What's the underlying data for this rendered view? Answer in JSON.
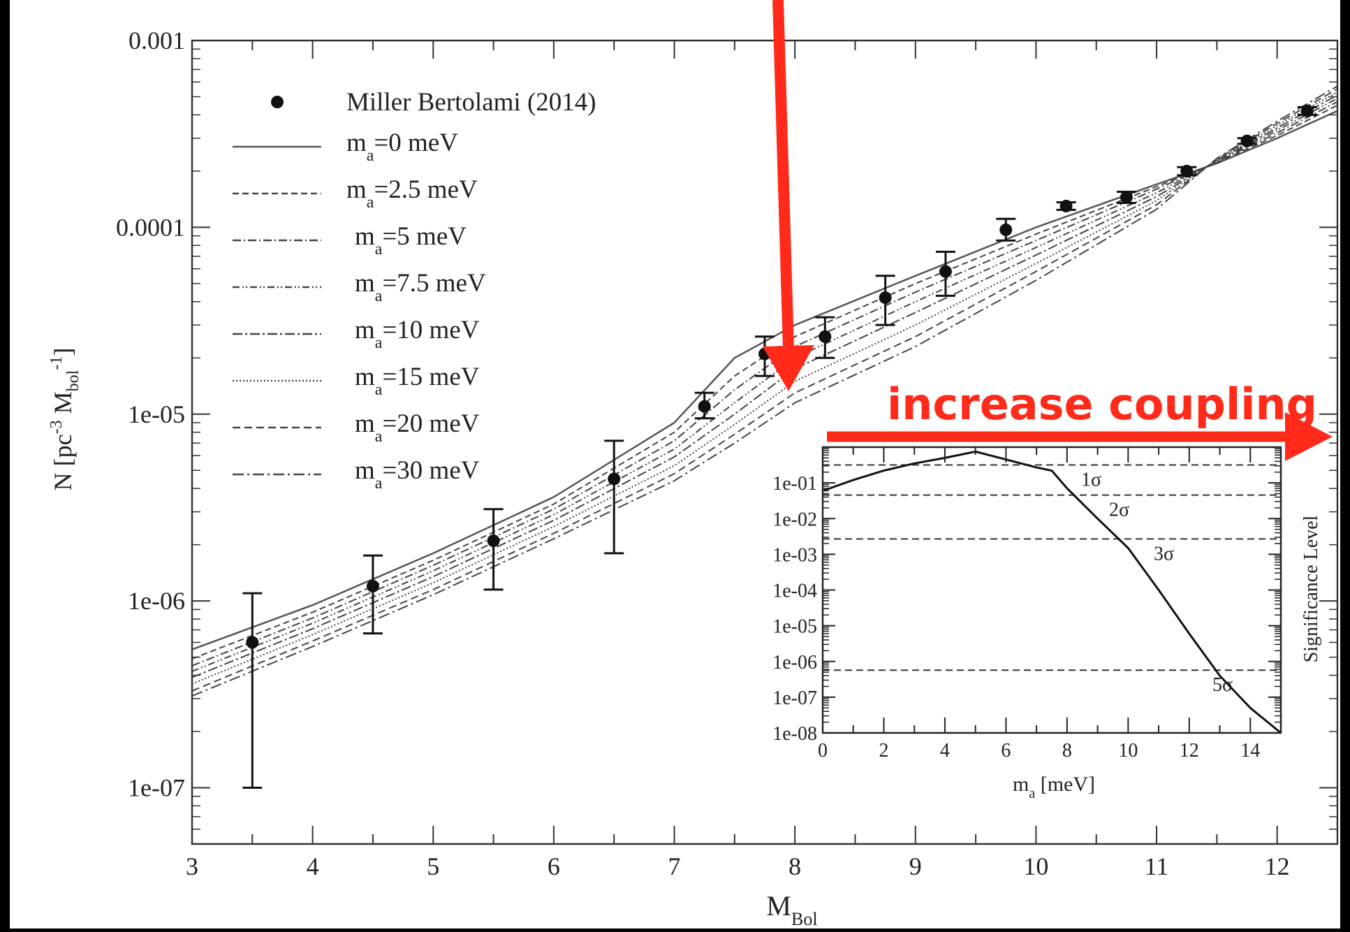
{
  "annotation": {
    "text": "increase coupling",
    "color": "#ff2a1a"
  },
  "chart_data": [
    {
      "type": "line",
      "title": "",
      "xlabel": "M",
      "xlabel_sub": "Bol",
      "ylabel_parts": {
        "a": "N [pc",
        "sup1": "-3",
        "b": " M",
        "sub": "bol",
        "sup2": "-1",
        "c": "]"
      },
      "xlim": [
        3,
        12.5
      ],
      "ylim": [
        5e-08,
        0.001
      ],
      "yscale": "log",
      "x_ticks": [
        3,
        4,
        5,
        6,
        7,
        8,
        9,
        10,
        11,
        12
      ],
      "x_tick_labels": [
        "3",
        "4",
        "5",
        "6",
        "7",
        "8",
        "9",
        "10",
        "11",
        "12"
      ],
      "y_ticks": [
        1e-07,
        1e-06,
        1e-05,
        0.0001,
        0.001
      ],
      "y_tick_labels": [
        "1e-07",
        "1e-06",
        "1e-05",
        "0.0001",
        "0.001"
      ],
      "legend_position": "top-left",
      "observations": {
        "name": "Miller Bertolami (2014)",
        "x": [
          3.5,
          4.5,
          5.5,
          6.5,
          7.25,
          7.75,
          8.25,
          8.75,
          9.25,
          9.75,
          10.25,
          10.75,
          11.25,
          11.75,
          12.25
        ],
        "y": [
          6e-07,
          1.2e-06,
          2.1e-06,
          4.5e-06,
          1.1e-05,
          2.1e-05,
          2.6e-05,
          4.2e-05,
          5.8e-05,
          9.7e-05,
          0.00013,
          0.000145,
          0.0002,
          0.00029,
          0.00042
        ],
        "y_low": [
          1e-07,
          6.7e-07,
          1.15e-06,
          1.8e-06,
          9.5e-06,
          1.6e-05,
          2e-05,
          3e-05,
          4.3e-05,
          8.5e-05,
          0.000124,
          0.000135,
          0.00019,
          0.00028,
          0.0004
        ],
        "y_high": [
          1.1e-06,
          1.75e-06,
          3.1e-06,
          7.2e-06,
          1.3e-05,
          2.6e-05,
          3.3e-05,
          5.5e-05,
          7.4e-05,
          0.000111,
          0.000136,
          0.000155,
          0.00021,
          0.0003,
          0.00044
        ]
      },
      "x": [
        3,
        4,
        5,
        6,
        7,
        7.5,
        8,
        9,
        10,
        11,
        11.5,
        12,
        12.5
      ],
      "series": [
        {
          "name": "=0 meV",
          "values": [
            5.5e-07,
            9.5e-07,
            1.8e-06,
            3.6e-06,
            9e-06,
            2e-05,
            3e-05,
            5.5e-05,
            0.0001,
            0.00017,
            0.00022,
            0.0003,
            0.00042
          ],
          "dash": ""
        },
        {
          "name": "=2.5 meV",
          "values": [
            4.9e-07,
            8.7e-07,
            1.65e-06,
            3.3e-06,
            8e-06,
            1.6e-05,
            2.6e-05,
            5e-05,
            9.2e-05,
            0.000165,
            0.000222,
            0.00031,
            0.00045
          ],
          "dash": "9,5"
        },
        {
          "name": "=5 meV",
          "values": [
            4.5e-07,
            8.1e-07,
            1.55e-06,
            3.1e-06,
            7.2e-06,
            1.35e-05,
            2.3e-05,
            4.5e-05,
            8.5e-05,
            0.00016,
            0.000224,
            0.00032,
            0.00047
          ],
          "dash": "12,4,2,4"
        },
        {
          "name": "=7.5 meV",
          "values": [
            4.2e-07,
            7.6e-07,
            1.45e-06,
            2.9e-06,
            6.5e-06,
            1.15e-05,
            2e-05,
            4e-05,
            7.8e-05,
            0.000153,
            0.000226,
            0.00033,
            0.00049
          ],
          "dash": "10,4,2,3,2,4"
        },
        {
          "name": "=10 meV",
          "values": [
            3.9e-07,
            7.1e-07,
            1.35e-06,
            2.7e-06,
            5.9e-06,
            1e-05,
            1.75e-05,
            3.5e-05,
            7.1e-05,
            0.000146,
            0.000228,
            0.00034,
            0.00051
          ],
          "dash": "14,4,3,4"
        },
        {
          "name": "=15 meV",
          "values": [
            3.6e-07,
            6.6e-07,
            1.25e-06,
            2.5e-06,
            5.3e-06,
            8.8e-06,
            1.5e-05,
            3e-05,
            6.4e-05,
            0.000139,
            0.00023,
            0.00035,
            0.00053
          ],
          "dash": "2,3"
        },
        {
          "name": "=20 meV",
          "values": [
            3.3e-07,
            6.1e-07,
            1.15e-06,
            2.3e-06,
            4.8e-06,
            7.8e-06,
            1.3e-05,
            2.6e-05,
            5.8e-05,
            0.000132,
            0.000232,
            0.00036,
            0.00055
          ],
          "dash": "11,6"
        },
        {
          "name": "=30 meV",
          "values": [
            3.1e-07,
            5.7e-07,
            1.08e-06,
            2.15e-06,
            4.4e-06,
            7e-06,
            1.15e-05,
            2.3e-05,
            5.2e-05,
            0.000125,
            0.000234,
            0.00037,
            0.00057
          ],
          "dash": "16,5,3,5"
        }
      ],
      "legend_label_symbol": "m",
      "legend_label_sub": "a"
    },
    {
      "type": "line",
      "title": "",
      "xlabel": "m",
      "xlabel_sub": "a",
      "xlabel_unit": " [meV]",
      "ylabel": "Significance Level",
      "xlim": [
        0,
        15
      ],
      "ylim": [
        1e-08,
        1
      ],
      "yscale": "log",
      "x_ticks": [
        0,
        2,
        4,
        6,
        8,
        10,
        12,
        14
      ],
      "x_tick_labels": [
        "0",
        "2",
        "4",
        "6",
        "8",
        "10",
        "12",
        "14"
      ],
      "y_ticks": [
        1e-08,
        1e-07,
        1e-06,
        1e-05,
        0.0001,
        0.001,
        0.01,
        0.1
      ],
      "y_tick_labels": [
        "1e-08",
        "1e-07",
        "1e-06",
        "1e-05",
        "1e-04",
        "1e-03",
        "1e-02",
        "1e-01"
      ],
      "x": [
        0,
        1,
        2,
        3,
        4,
        5,
        6,
        7,
        7.5,
        8,
        9,
        10,
        11,
        12,
        13,
        14,
        15
      ],
      "values": [
        0.06,
        0.12,
        0.22,
        0.35,
        0.5,
        0.75,
        0.45,
        0.27,
        0.22,
        0.07,
        0.01,
        0.0015,
        0.0001,
        6e-06,
        4e-07,
        5e-08,
        1e-08
      ],
      "significance_lines": [
        {
          "label": "1σ",
          "value": 0.317
        },
        {
          "label": "2σ",
          "value": 0.0455
        },
        {
          "label": "3σ",
          "value": 0.0027
        },
        {
          "label": "5σ",
          "value": 5.7e-07
        }
      ]
    }
  ]
}
